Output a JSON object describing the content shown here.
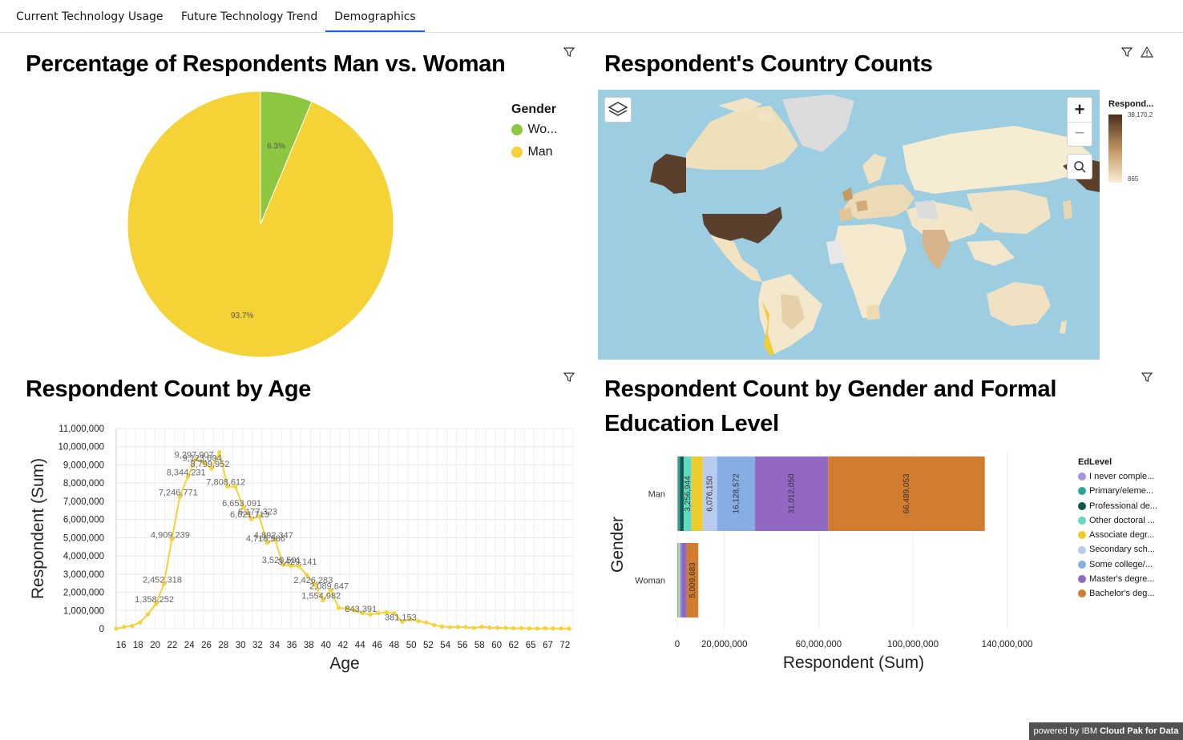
{
  "tabs": [
    {
      "label": "Current Technology Usage"
    },
    {
      "label": "Future Technology Trend"
    },
    {
      "label": "Demographics"
    }
  ],
  "active_tab": "Demographics",
  "panels": {
    "gender_pie": {
      "title": "Percentage of Respondents Man vs. Woman",
      "legend_title": "Gender"
    },
    "country_map": {
      "title": "Respondent's Country Counts",
      "legend_title": "Respond...",
      "legend_max": "38,170,2",
      "legend_min": "865"
    },
    "age_line": {
      "title": "Respondent Count by Age"
    },
    "edu_bar": {
      "title": "Respondent Count by Gender and Formal",
      "title_line2": "Education Level"
    }
  },
  "footer": {
    "prefix": "powered by IBM ",
    "brand": "Cloud Pak for Data"
  },
  "icons": {
    "filter": "filter-icon",
    "warning": "warning-icon",
    "layers": "layers-icon",
    "zoom_in": "plus-icon",
    "zoom_out": "minus-icon",
    "search": "search-icon"
  },
  "colors": {
    "accent": "#0f62fe",
    "woman": "#8dc63f",
    "man": "#f5d235",
    "ocean": "#9ccde0",
    "line": "#f5d235"
  },
  "chart_data": [
    {
      "type": "pie",
      "legend_title": "Gender",
      "slices": [
        {
          "label": "Wo...",
          "value": 6.3,
          "text": "6.3%",
          "color": "#8dc63f"
        },
        {
          "label": "Man",
          "value": 93.7,
          "text": "93.7%",
          "color": "#f5d235"
        }
      ],
      "legend_placement": "right"
    },
    {
      "type": "line",
      "xlabel": "Age",
      "ylabel": "Respondent (Sum)",
      "ylim": [
        0,
        11000000
      ],
      "yticks": [
        "0",
        "1,000,000",
        "2,000,000",
        "3,000,000",
        "4,000,000",
        "5,000,000",
        "6,000,000",
        "7,000,000",
        "8,000,000",
        "9,000,000",
        "10,000,000",
        "11,000,000"
      ],
      "xticks": [
        "16",
        "18",
        "20",
        "22",
        "24",
        "26",
        "28",
        "30",
        "32",
        "34",
        "36",
        "38",
        "40",
        "42",
        "44",
        "46",
        "48",
        "50",
        "52",
        "54",
        "56",
        "58",
        "60",
        "62",
        "65",
        "67",
        "72"
      ],
      "grid": true,
      "points": [
        {
          "x": 15,
          "y": 0
        },
        {
          "x": 16,
          "y": 100000
        },
        {
          "x": 17,
          "y": 150000
        },
        {
          "x": 18,
          "y": 350000
        },
        {
          "x": 19,
          "y": 800000
        },
        {
          "x": 20,
          "y": 1358252,
          "label": "1,358,252"
        },
        {
          "x": 21,
          "y": 2452318,
          "label": "2,452,318"
        },
        {
          "x": 22,
          "y": 4909239,
          "label": "4,909,239"
        },
        {
          "x": 23,
          "y": 7246771,
          "label": "7,246,771"
        },
        {
          "x": 24,
          "y": 8344231,
          "label": "8,344,231"
        },
        {
          "x": 25,
          "y": 9297907,
          "label": "9,297,907"
        },
        {
          "x": 26,
          "y": 9123694,
          "label": "9,123,694"
        },
        {
          "x": 27,
          "y": 8799952,
          "label": "8,799,952"
        },
        {
          "x": 28,
          "y": 9700000
        },
        {
          "x": 29,
          "y": 7808612,
          "label": "7,808,612"
        },
        {
          "x": 30,
          "y": 7800000
        },
        {
          "x": 31,
          "y": 6653091,
          "label": "6,653,091"
        },
        {
          "x": 32,
          "y": 6021713,
          "label": "6,021,713"
        },
        {
          "x": 33,
          "y": 6177323,
          "label": "6,177,323"
        },
        {
          "x": 34,
          "y": 4718986,
          "label": "4,718,986"
        },
        {
          "x": 35,
          "y": 4892347,
          "label": "4,892,347"
        },
        {
          "x": 36,
          "y": 3520501,
          "label": "3,520,501"
        },
        {
          "x": 37,
          "y": 3450000
        },
        {
          "x": 38,
          "y": 3429141,
          "label": "3,429,141"
        },
        {
          "x": 39,
          "y": 2950000
        },
        {
          "x": 40,
          "y": 2426283,
          "label": "2,426,283"
        },
        {
          "x": 41,
          "y": 1554982,
          "label": "1,554,982"
        },
        {
          "x": 42,
          "y": 2089647,
          "label": "2,089,647"
        },
        {
          "x": 43,
          "y": 1150000
        },
        {
          "x": 44,
          "y": 1100000
        },
        {
          "x": 45,
          "y": 1000000
        },
        {
          "x": 46,
          "y": 843391,
          "label": "843,391"
        },
        {
          "x": 47,
          "y": 780000
        },
        {
          "x": 48,
          "y": 850000
        },
        {
          "x": 49,
          "y": 900000
        },
        {
          "x": 50,
          "y": 850000
        },
        {
          "x": 51,
          "y": 381153,
          "label": "381,153"
        },
        {
          "x": 52,
          "y": 500000
        },
        {
          "x": 53,
          "y": 420000
        },
        {
          "x": 54,
          "y": 350000
        },
        {
          "x": 55,
          "y": 200000
        },
        {
          "x": 56,
          "y": 120000
        },
        {
          "x": 57,
          "y": 80000
        },
        {
          "x": 58,
          "y": 100000
        },
        {
          "x": 59,
          "y": 90000
        },
        {
          "x": 60,
          "y": 40000
        },
        {
          "x": 61,
          "y": 110000
        },
        {
          "x": 62,
          "y": 60000
        },
        {
          "x": 63,
          "y": 50000
        },
        {
          "x": 64,
          "y": 40000
        },
        {
          "x": 65,
          "y": 20000
        },
        {
          "x": 66,
          "y": 30000
        },
        {
          "x": 67,
          "y": 15000
        },
        {
          "x": 68,
          "y": 10000
        },
        {
          "x": 69,
          "y": 20000
        },
        {
          "x": 70,
          "y": 15000
        },
        {
          "x": 71,
          "y": 10000
        },
        {
          "x": 72,
          "y": 5000
        }
      ]
    },
    {
      "type": "bar",
      "orientation": "horizontal",
      "stacked": true,
      "xlabel": "Respondent (Sum)",
      "ylabel": "Gender",
      "xticks": [
        "0",
        "20,000,000",
        "60,000,000",
        "100,000,000",
        "140,000,000"
      ],
      "xlim": [
        0,
        150000000
      ],
      "categories": [
        "Man",
        "Woman"
      ],
      "legend_title": "EdLevel",
      "legend_placement": "right",
      "series": [
        {
          "name": "I never comple...",
          "color": "#a393e0",
          "values": [
            350000,
            60000
          ]
        },
        {
          "name": "Primary/eleme...",
          "color": "#29a89a",
          "values": [
            800000,
            40000
          ]
        },
        {
          "name": "Professional de...",
          "color": "#13594f",
          "values": [
            1600000,
            80000
          ]
        },
        {
          "name": "Other doctoral ...",
          "color": "#5edbc1",
          "values": [
            3256944,
            200000
          ],
          "label": "3,256,944"
        },
        {
          "name": "Associate degr...",
          "color": "#f0cc2b",
          "values": [
            4800000,
            300000
          ]
        },
        {
          "name": "Secondary sch...",
          "color": "#b9cbef",
          "values": [
            6076150,
            350000
          ],
          "label": "6,076,150"
        },
        {
          "name": "Some college/...",
          "color": "#86aee4",
          "values": [
            16128572,
            700000
          ],
          "label": "16,128,572"
        },
        {
          "name": "Master's degre...",
          "color": "#9367c4",
          "values": [
            31012050,
            2200000
          ],
          "label": "31,012,050"
        },
        {
          "name": "Bachelor's deg...",
          "color": "#d27c30",
          "values": [
            66489053,
            5009683
          ],
          "label": "66,489,053",
          "label2": "5,009,683"
        }
      ]
    },
    {
      "type": "map",
      "legend_title": "Respond...",
      "legend_range": [
        "865",
        "38,170,2"
      ]
    }
  ]
}
